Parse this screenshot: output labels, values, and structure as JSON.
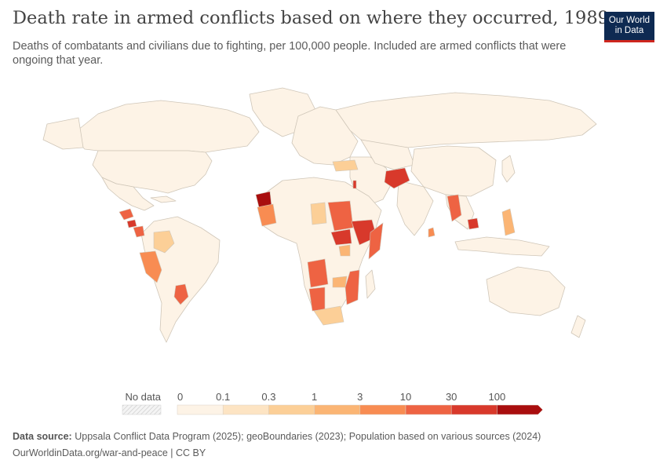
{
  "title": "Death rate in armed conflicts based on where they occurred, 1989",
  "subtitle": "Deaths of combatants and civilians due to fighting, per 100,000 people. Included are armed conflicts that were ongoing that year.",
  "logo": {
    "line1": "Our World",
    "line2": "in Data"
  },
  "legend": {
    "no_data_label": "No data",
    "bins": [
      {
        "label": "0",
        "color": "#fdf3e6"
      },
      {
        "label": "0.1",
        "color": "#fde4c3"
      },
      {
        "label": "0.3",
        "color": "#fccf97"
      },
      {
        "label": "1",
        "color": "#fbb574"
      },
      {
        "label": "3",
        "color": "#f88c52"
      },
      {
        "label": "10",
        "color": "#ee6343"
      },
      {
        "label": "30",
        "color": "#d8392b"
      },
      {
        "label": "100",
        "color": "#a90e0e"
      }
    ]
  },
  "colors": {
    "base": "#fdf3e6",
    "border": "#cfc6b8",
    "no_data": "#eeeeee"
  },
  "footer": {
    "source_label": "Data source:",
    "source_text": "Uppsala Conflict Data Program (2025); geoBoundaries (2023); Population based on various sources (2024)",
    "url_text": "OurWorldinData.org/war-and-peace | CC BY"
  }
}
